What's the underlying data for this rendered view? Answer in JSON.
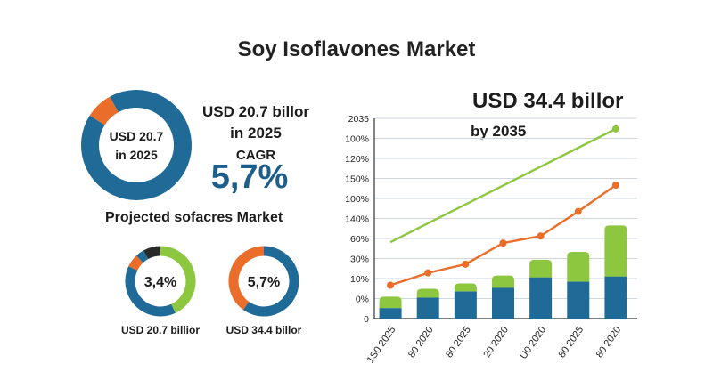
{
  "title": "Soy Isoflavones Market",
  "colors": {
    "blue": "#1f6a96",
    "orange": "#ea6d2a",
    "green": "#8dc63f",
    "dark": "#2a2a2a",
    "grid": "#cfd6dc"
  },
  "main_donut": {
    "center_line1": "USD 20.7",
    "center_line2": "in 2025",
    "value_label": "USD 20.7 billor",
    "year_label": "in 2025",
    "cagr_label": "CAGR",
    "cagr_value": "5,7%",
    "segments": [
      {
        "color": "blue",
        "share": 0.92
      },
      {
        "color": "orange",
        "share": 0.08
      }
    ]
  },
  "projected": {
    "title": "Projected sofacres Market",
    "donuts": [
      {
        "center": "3,4%",
        "caption": "USD 20.7 billior",
        "segments": [
          {
            "color": "green",
            "share": 0.43
          },
          {
            "color": "blue",
            "share": 0.39
          },
          {
            "color": "orange",
            "share": 0.06
          },
          {
            "color": "blue",
            "share": 0.04
          },
          {
            "color": "dark",
            "share": 0.08
          }
        ]
      },
      {
        "center": "5,7%",
        "caption": "USD 34.4 billor",
        "segments": [
          {
            "color": "blue",
            "share": 0.6
          },
          {
            "color": "orange",
            "share": 0.4
          }
        ]
      }
    ]
  },
  "headline": {
    "value": "USD 34.4 billor",
    "year": "by 2035"
  },
  "chart_data": {
    "type": "bar",
    "y_tick_labels": [
      "2035",
      "100%",
      "120%",
      "150%",
      "100%",
      "140%",
      "60%",
      "30%",
      "10%",
      "0%",
      "0"
    ],
    "categories": [
      "1S0 2025",
      "80 2020",
      "80 2025",
      "20 2020",
      "U0 2020",
      "80 2025",
      "80 2020"
    ],
    "series": [
      {
        "kind": "bar",
        "color": "blue",
        "values": [
          12,
          24,
          31,
          35,
          47,
          42,
          48
        ]
      },
      {
        "kind": "bar",
        "color": "green",
        "values": [
          13,
          10,
          9,
          14,
          20,
          34,
          58
        ]
      },
      {
        "kind": "line",
        "color": "orange",
        "values": [
          38,
          52,
          62,
          86,
          94,
          122,
          152
        ]
      },
      {
        "kind": "line",
        "color": "green",
        "values": [
          87,
          null,
          null,
          null,
          null,
          null,
          216
        ]
      }
    ],
    "ylim": [
      0,
      228
    ],
    "grid": true
  }
}
